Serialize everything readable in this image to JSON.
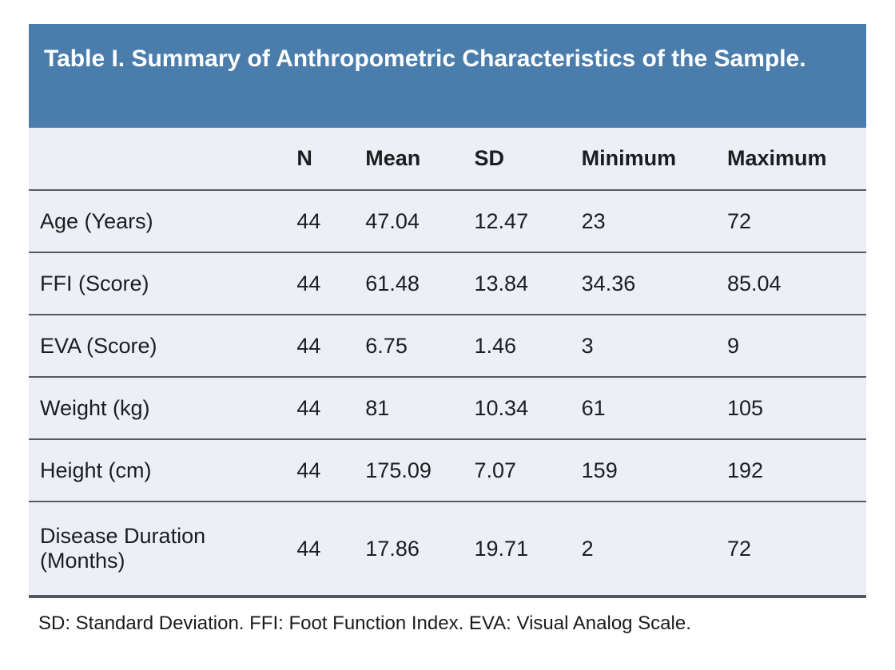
{
  "table": {
    "title": "Table I. Summary of Anthropometric Characteristics of the Sample.",
    "columns": {
      "label": "",
      "n": "N",
      "mean": "Mean",
      "sd": "SD",
      "min": "Minimum",
      "max": "Maximum"
    },
    "rows": [
      {
        "label": "Age (Years)",
        "n": "44",
        "mean": "47.04",
        "sd": "12.47",
        "min": "23",
        "max": "72"
      },
      {
        "label": "FFI (Score)",
        "n": "44",
        "mean": "61.48",
        "sd": "13.84",
        "min": "34.36",
        "max": "85.04"
      },
      {
        "label": "EVA (Score)",
        "n": "44",
        "mean": "6.75",
        "sd": "1.46",
        "min": "3",
        "max": "9"
      },
      {
        "label": "Weight (kg)",
        "n": "44",
        "mean": "81",
        "sd": "10.34",
        "min": "61",
        "max": "105"
      },
      {
        "label": "Height (cm)",
        "n": "44",
        "mean": "175.09",
        "sd": "7.07",
        "min": "159",
        "max": "192"
      },
      {
        "label": "Disease Duration (Months)",
        "n": "44",
        "mean": "17.86",
        "sd": "19.71",
        "min": "2",
        "max": "72"
      }
    ],
    "footnote": "SD: Standard Deviation. FFI: Foot Function Index. EVA: Visual Analog Scale.",
    "colors": {
      "title_bg": "#4A7DAC",
      "title_text": "#FFFFFF",
      "body_bg": "#ECEFF6",
      "border": "#565A61"
    }
  },
  "chart_data": {
    "type": "table",
    "title": "Table I. Summary of Anthropometric Characteristics of the Sample.",
    "columns": [
      "",
      "N",
      "Mean",
      "SD",
      "Minimum",
      "Maximum"
    ],
    "rows": [
      [
        "Age (Years)",
        44,
        47.04,
        12.47,
        23,
        72
      ],
      [
        "FFI (Score)",
        44,
        61.48,
        13.84,
        34.36,
        85.04
      ],
      [
        "EVA (Score)",
        44,
        6.75,
        1.46,
        3,
        9
      ],
      [
        "Weight (kg)",
        44,
        81,
        10.34,
        61,
        105
      ],
      [
        "Height (cm)",
        44,
        175.09,
        7.07,
        159,
        192
      ],
      [
        "Disease Duration (Months)",
        44,
        17.86,
        19.71,
        2,
        72
      ]
    ],
    "footnote": "SD: Standard Deviation. FFI: Foot Function Index. EVA: Visual Analog Scale."
  }
}
